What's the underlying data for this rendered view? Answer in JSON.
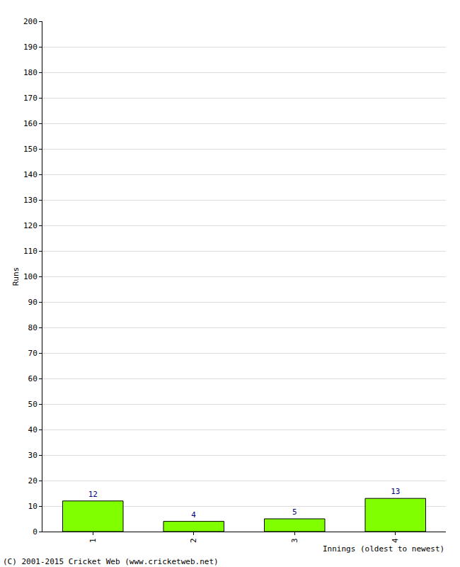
{
  "chart_data": {
    "type": "bar",
    "x_label": "Innings (oldest to newest)",
    "y_label": "Runs",
    "categories": [
      "1",
      "2",
      "3",
      "4"
    ],
    "values": [
      12,
      4,
      5,
      13
    ],
    "color": "#80ff00",
    "data_labels": true,
    "ylim": [
      0,
      200
    ],
    "yticks": [
      0,
      10,
      20,
      30,
      40,
      50,
      60,
      70,
      80,
      90,
      100,
      110,
      120,
      130,
      140,
      150,
      160,
      170,
      180,
      190,
      200
    ],
    "grid": true,
    "annotations": [
      "(C) 2001-2015 Cricket Web (www.cricketweb.net)"
    ]
  }
}
